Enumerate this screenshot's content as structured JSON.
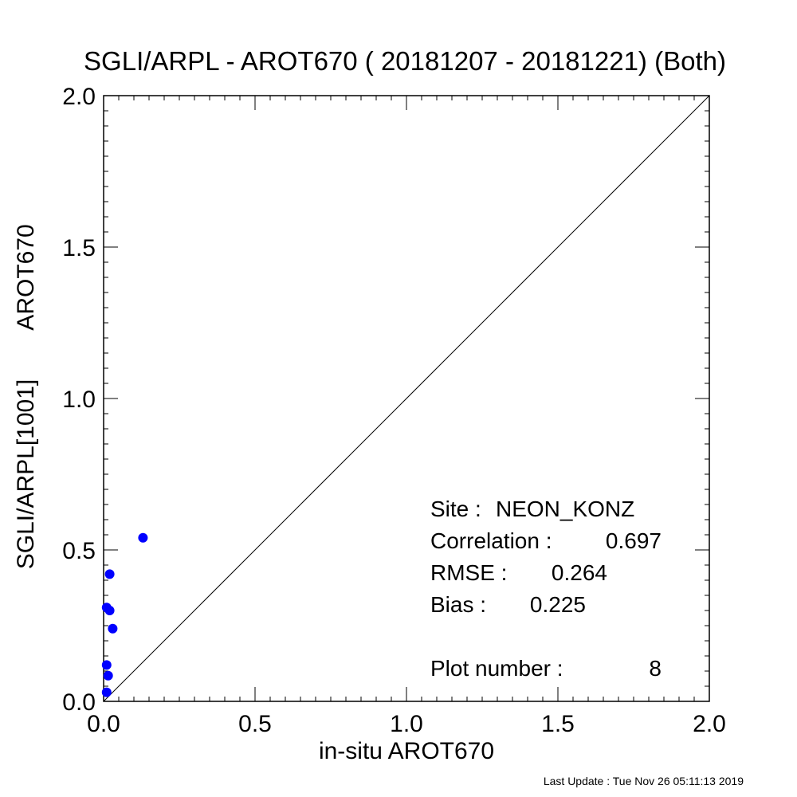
{
  "chart_data": {
    "type": "scatter",
    "title": "SGLI/ARPL - AROT670 ( 20181207 - 20181221) (Both)",
    "xlabel": "in-situ AROT670",
    "ylabel_left": "SGLI/ARPL[1001]",
    "ylabel_right": "AROT670",
    "xlim": [
      0.0,
      2.0
    ],
    "ylim": [
      0.0,
      2.0
    ],
    "xticks": [
      "0.0",
      "0.5",
      "1.0",
      "1.5",
      "2.0"
    ],
    "yticks": [
      "0.0",
      "0.5",
      "1.0",
      "1.5",
      "2.0"
    ],
    "grid": false,
    "reference_line": "1:1",
    "marker_color": "#0000ff",
    "points": [
      {
        "x": 0.13,
        "y": 0.54
      },
      {
        "x": 0.02,
        "y": 0.42
      },
      {
        "x": 0.01,
        "y": 0.31
      },
      {
        "x": 0.02,
        "y": 0.3
      },
      {
        "x": 0.03,
        "y": 0.24
      },
      {
        "x": 0.01,
        "y": 0.12
      },
      {
        "x": 0.015,
        "y": 0.085
      },
      {
        "x": 0.01,
        "y": 0.03
      }
    ],
    "stats": {
      "site_label": "Site :",
      "site_value": "NEON_KONZ",
      "correlation_label": "Correlation :",
      "correlation_value": "0.697",
      "rmse_label": "RMSE :",
      "rmse_value": "0.264",
      "bias_label": "Bias :",
      "bias_value": "0.225",
      "plot_number_label": "Plot number :",
      "plot_number_value": "8"
    }
  },
  "footer": {
    "last_update": "Last Update : Tue Nov 26 05:11:13 2019"
  }
}
